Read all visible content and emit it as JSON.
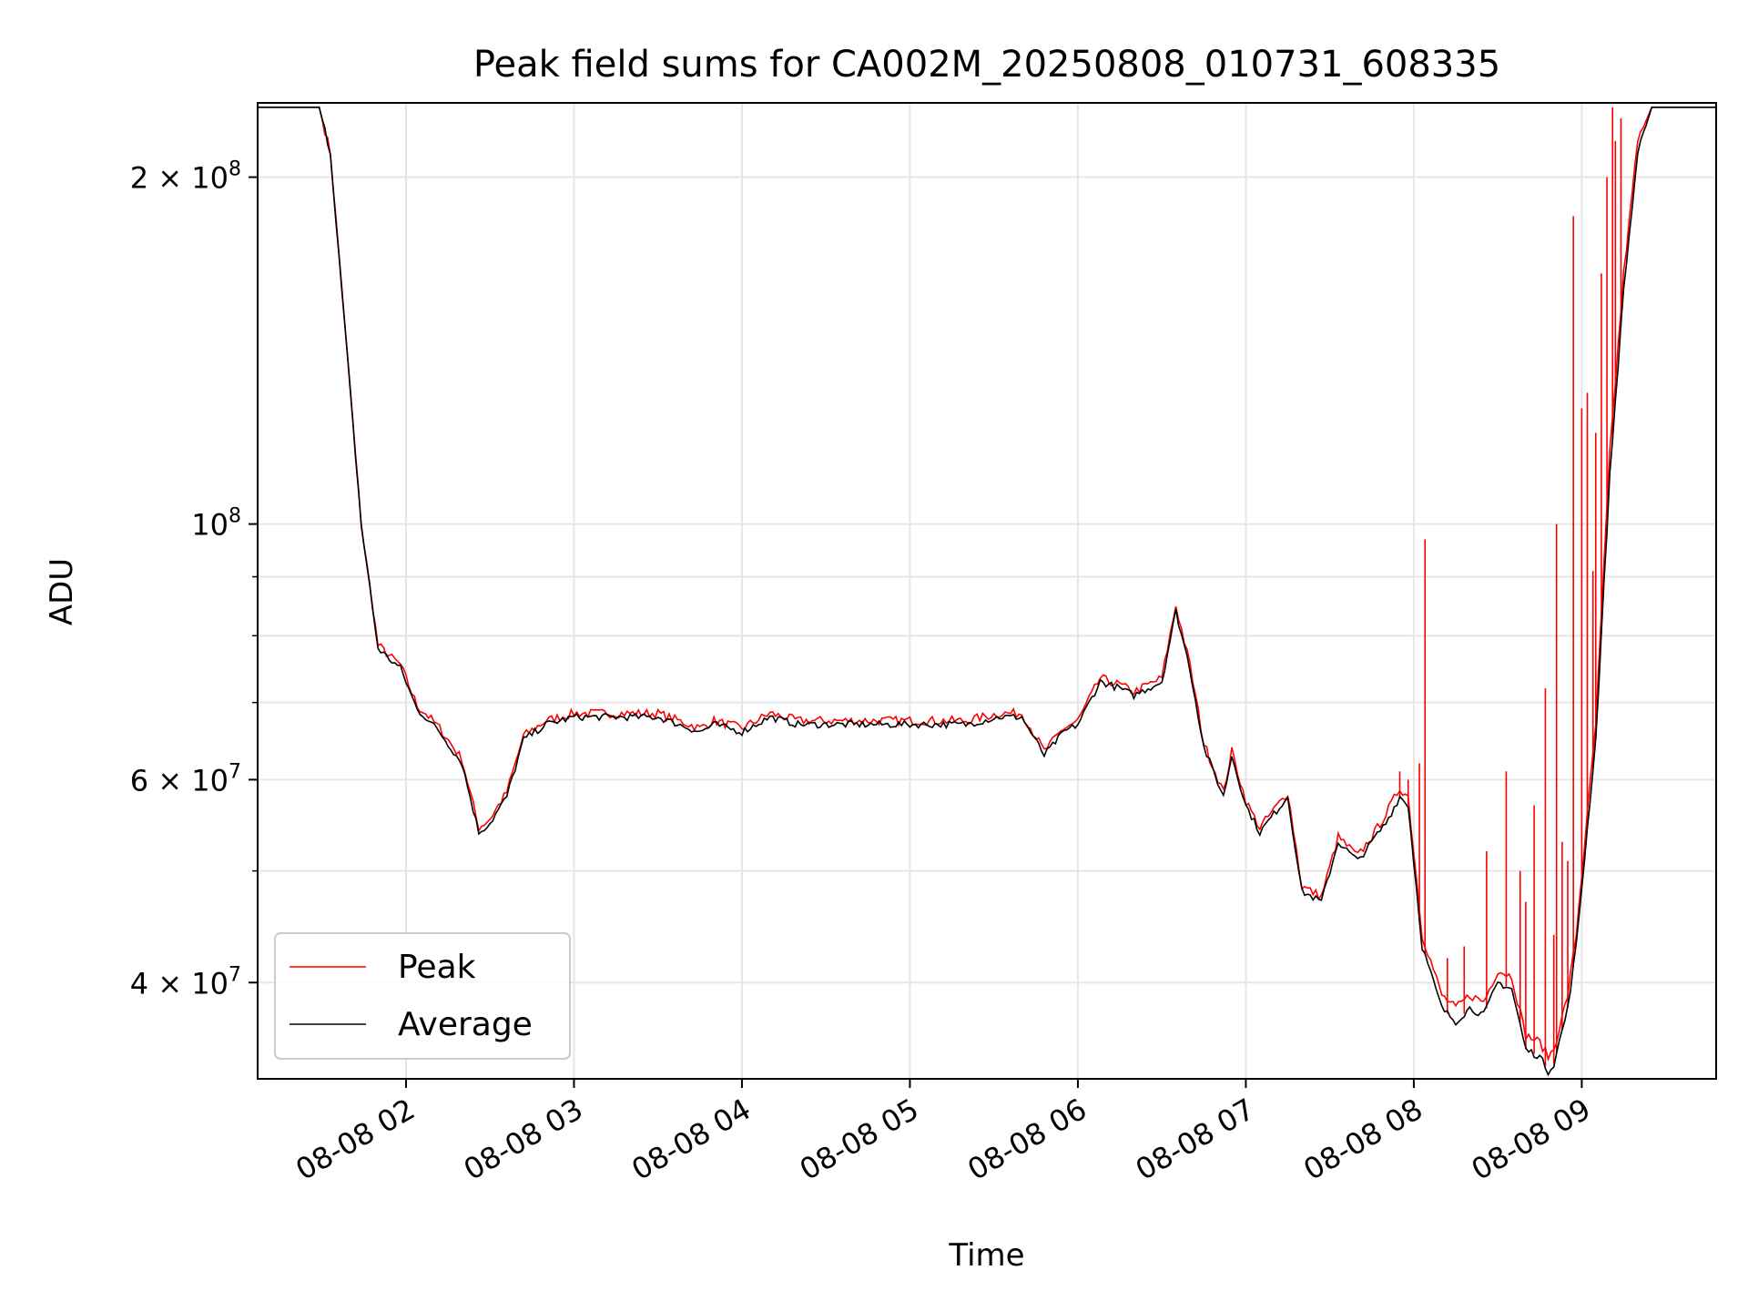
{
  "chart_data": {
    "type": "line",
    "title": "Peak field sums for CA002M_20250808_010731_608335",
    "xlabel": "Time",
    "ylabel": "ADU",
    "y_scale": "log",
    "ylim": [
      33000000,
      232000000
    ],
    "xlim": [
      "2025-08-08 01:07",
      "2025-08-08 09:48"
    ],
    "x_ticks": [
      {
        "value": "2025-08-08 02:00",
        "label": "08-08 02"
      },
      {
        "value": "2025-08-08 03:00",
        "label": "08-08 03"
      },
      {
        "value": "2025-08-08 04:00",
        "label": "08-08 04"
      },
      {
        "value": "2025-08-08 05:00",
        "label": "08-08 05"
      },
      {
        "value": "2025-08-08 06:00",
        "label": "08-08 06"
      },
      {
        "value": "2025-08-08 07:00",
        "label": "08-08 07"
      },
      {
        "value": "2025-08-08 08:00",
        "label": "08-08 08"
      },
      {
        "value": "2025-08-08 09:00",
        "label": "08-08 09"
      }
    ],
    "y_ticks": [
      {
        "value": 40000000,
        "label": "4 × 10",
        "exp": "7"
      },
      {
        "value": 60000000,
        "label": "6 × 10",
        "exp": "7"
      },
      {
        "value": 100000000,
        "label": "10",
        "exp": "8"
      },
      {
        "value": 200000000,
        "label": "2 × 10",
        "exp": "8"
      }
    ],
    "y_minor_ticks": [
      50000000,
      70000000,
      80000000,
      90000000
    ],
    "grid": true,
    "legend_position": "lower-left",
    "series": [
      {
        "name": "Average",
        "color": "#000000",
        "x": [
          "2025-08-08 01:07",
          "2025-08-08 01:29",
          "2025-08-08 01:33",
          "2025-08-08 01:38",
          "2025-08-08 01:44",
          "2025-08-08 01:50",
          "2025-08-08 01:55",
          "2025-08-08 01:58",
          "2025-08-08 02:04",
          "2025-08-08 02:07",
          "2025-08-08 02:12",
          "2025-08-08 02:20",
          "2025-08-08 02:26",
          "2025-08-08 02:30",
          "2025-08-08 02:36",
          "2025-08-08 02:42",
          "2025-08-08 02:50",
          "2025-08-08 03:00",
          "2025-08-08 03:15",
          "2025-08-08 03:30",
          "2025-08-08 03:45",
          "2025-08-08 03:50",
          "2025-08-08 04:00",
          "2025-08-08 04:10",
          "2025-08-08 04:20",
          "2025-08-08 04:40",
          "2025-08-08 05:00",
          "2025-08-08 05:20",
          "2025-08-08 05:32",
          "2025-08-08 05:40",
          "2025-08-08 05:48",
          "2025-08-08 05:55",
          "2025-08-08 06:00",
          "2025-08-08 06:08",
          "2025-08-08 06:15",
          "2025-08-08 06:20",
          "2025-08-08 06:25",
          "2025-08-08 06:30",
          "2025-08-08 06:35",
          "2025-08-08 06:40",
          "2025-08-08 06:45",
          "2025-08-08 06:52",
          "2025-08-08 06:55",
          "2025-08-08 07:00",
          "2025-08-08 07:05",
          "2025-08-08 07:10",
          "2025-08-08 07:15",
          "2025-08-08 07:20",
          "2025-08-08 07:27",
          "2025-08-08 07:33",
          "2025-08-08 07:40",
          "2025-08-08 07:45",
          "2025-08-08 07:50",
          "2025-08-08 07:55",
          "2025-08-08 07:58",
          "2025-08-08 08:03",
          "2025-08-08 08:10",
          "2025-08-08 08:15",
          "2025-08-08 08:20",
          "2025-08-08 08:25",
          "2025-08-08 08:30",
          "2025-08-08 08:35",
          "2025-08-08 08:40",
          "2025-08-08 08:45",
          "2025-08-08 08:48",
          "2025-08-08 08:50",
          "2025-08-08 08:55",
          "2025-08-08 08:58",
          "2025-08-08 09:05",
          "2025-08-08 09:10",
          "2025-08-08 09:15",
          "2025-08-08 09:20",
          "2025-08-08 09:25",
          "2025-08-08 09:30",
          "2025-08-08 09:48"
        ],
        "values": [
          230000000,
          230000000,
          210000000,
          150000000,
          100000000,
          78000000,
          76000000,
          75000000,
          69000000,
          68000000,
          66000000,
          62000000,
          54000000,
          55000000,
          58000000,
          65000000,
          67000000,
          68000000,
          68000000,
          68000000,
          66000000,
          67000000,
          66000000,
          68000000,
          67000000,
          67000000,
          67000000,
          67000000,
          68000000,
          68000000,
          63000000,
          66000000,
          67000000,
          73000000,
          72000000,
          71000000,
          72000000,
          73000000,
          84000000,
          75000000,
          64000000,
          58000000,
          63000000,
          57000000,
          54000000,
          56000000,
          58000000,
          48000000,
          47000000,
          53000000,
          51000000,
          53000000,
          55000000,
          58000000,
          57000000,
          43000000,
          38000000,
          37000000,
          38000000,
          37500000,
          40000000,
          39500000,
          35000000,
          34500000,
          33500000,
          34000000,
          38000000,
          43000000,
          65000000,
          110000000,
          160000000,
          210000000,
          230000000,
          230000000,
          230000000
        ]
      },
      {
        "name": "Peak",
        "color": "#ff0000",
        "x": [
          "2025-08-08 01:07",
          "2025-08-08 01:29",
          "2025-08-08 01:33",
          "2025-08-08 01:38",
          "2025-08-08 01:44",
          "2025-08-08 01:50",
          "2025-08-08 01:55",
          "2025-08-08 01:58",
          "2025-08-08 02:04",
          "2025-08-08 02:07",
          "2025-08-08 02:12",
          "2025-08-08 02:20",
          "2025-08-08 02:26",
          "2025-08-08 02:30",
          "2025-08-08 02:36",
          "2025-08-08 02:42",
          "2025-08-08 02:50",
          "2025-08-08 03:00",
          "2025-08-08 03:15",
          "2025-08-08 03:30",
          "2025-08-08 03:45",
          "2025-08-08 03:50",
          "2025-08-08 04:00",
          "2025-08-08 04:10",
          "2025-08-08 04:20",
          "2025-08-08 04:40",
          "2025-08-08 05:00",
          "2025-08-08 05:20",
          "2025-08-08 05:32",
          "2025-08-08 05:40",
          "2025-08-08 05:48",
          "2025-08-08 05:55",
          "2025-08-08 06:00",
          "2025-08-08 06:08",
          "2025-08-08 06:15",
          "2025-08-08 06:20",
          "2025-08-08 06:25",
          "2025-08-08 06:30",
          "2025-08-08 06:35",
          "2025-08-08 06:40",
          "2025-08-08 06:45",
          "2025-08-08 06:52",
          "2025-08-08 06:55",
          "2025-08-08 07:00",
          "2025-08-08 07:05",
          "2025-08-08 07:10",
          "2025-08-08 07:15",
          "2025-08-08 07:20",
          "2025-08-08 07:27",
          "2025-08-08 07:33",
          "2025-08-08 07:40",
          "2025-08-08 07:45",
          "2025-08-08 07:50",
          "2025-08-08 07:55",
          "2025-08-08 07:58",
          "2025-08-08 08:03",
          "2025-08-08 08:10",
          "2025-08-08 08:15",
          "2025-08-08 08:20",
          "2025-08-08 08:25",
          "2025-08-08 08:30",
          "2025-08-08 08:35",
          "2025-08-08 08:40",
          "2025-08-08 08:45",
          "2025-08-08 08:48",
          "2025-08-08 08:50",
          "2025-08-08 08:55",
          "2025-08-08 08:58",
          "2025-08-08 09:05",
          "2025-08-08 09:10",
          "2025-08-08 09:15",
          "2025-08-08 09:20",
          "2025-08-08 09:25",
          "2025-08-08 09:30",
          "2025-08-08 09:48"
        ],
        "values": [
          230000000,
          230000000,
          210000000,
          150000000,
          100000000,
          78500000,
          76500000,
          75500000,
          69500000,
          68500000,
          66500000,
          62500000,
          54500000,
          55500000,
          58500000,
          65500000,
          67500000,
          68500000,
          68500000,
          68500000,
          66500000,
          67500000,
          66500000,
          68500000,
          67500000,
          67500000,
          67500000,
          67500000,
          68500000,
          68500000,
          63500000,
          66500000,
          67500000,
          73500000,
          72500000,
          71500000,
          72500000,
          73500000,
          85000000,
          75500000,
          64500000,
          58500000,
          63500000,
          57500000,
          54500000,
          56500000,
          58500000,
          48500000,
          47500000,
          53500000,
          51500000,
          53500000,
          56000000,
          59000000,
          58000000,
          44000000,
          39000000,
          38000000,
          39000000,
          38500000,
          41000000,
          40500000,
          36000000,
          35500000,
          34500000,
          35000000,
          39000000,
          44000000,
          67000000,
          115000000,
          165000000,
          215000000,
          230000000,
          230000000,
          230000000
        ],
        "spikes": [
          {
            "x": "2025-08-08 07:55",
            "value": 61000000
          },
          {
            "x": "2025-08-08 07:58",
            "value": 60000000
          },
          {
            "x": "2025-08-08 08:02",
            "value": 62000000
          },
          {
            "x": "2025-08-08 08:04",
            "value": 97000000
          },
          {
            "x": "2025-08-08 08:12",
            "value": 42000000
          },
          {
            "x": "2025-08-08 08:18",
            "value": 43000000
          },
          {
            "x": "2025-08-08 08:26",
            "value": 52000000
          },
          {
            "x": "2025-08-08 08:33",
            "value": 61000000
          },
          {
            "x": "2025-08-08 08:38",
            "value": 50000000
          },
          {
            "x": "2025-08-08 08:40",
            "value": 47000000
          },
          {
            "x": "2025-08-08 08:43",
            "value": 57000000
          },
          {
            "x": "2025-08-08 08:47",
            "value": 72000000
          },
          {
            "x": "2025-08-08 08:50",
            "value": 44000000
          },
          {
            "x": "2025-08-08 08:51",
            "value": 100000000
          },
          {
            "x": "2025-08-08 08:53",
            "value": 53000000
          },
          {
            "x": "2025-08-08 08:55",
            "value": 51000000
          },
          {
            "x": "2025-08-08 08:57",
            "value": 185000000
          },
          {
            "x": "2025-08-08 09:00",
            "value": 126000000
          },
          {
            "x": "2025-08-08 09:02",
            "value": 130000000
          },
          {
            "x": "2025-08-08 09:04",
            "value": 91000000
          },
          {
            "x": "2025-08-08 09:05",
            "value": 120000000
          },
          {
            "x": "2025-08-08 09:07",
            "value": 165000000
          },
          {
            "x": "2025-08-08 09:09",
            "value": 200000000
          },
          {
            "x": "2025-08-08 09:11",
            "value": 230000000
          },
          {
            "x": "2025-08-08 09:12",
            "value": 215000000
          },
          {
            "x": "2025-08-08 09:14",
            "value": 225000000
          }
        ]
      }
    ],
    "legend": [
      "Peak",
      "Average"
    ]
  }
}
